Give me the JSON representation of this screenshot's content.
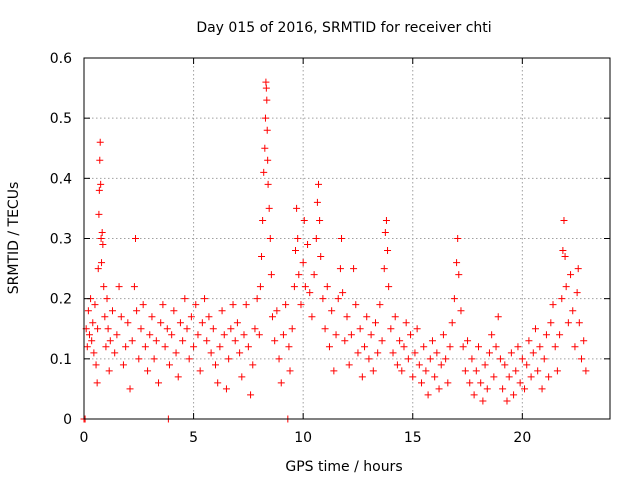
{
  "chart_data": {
    "type": "scatter",
    "title": "Day 015 of 2016, SRMTID for receiver chti",
    "xlabel": "GPS time / hours",
    "ylabel": "SRMTID / TECUs",
    "xlim": [
      0,
      24
    ],
    "ylim": [
      0,
      0.6
    ],
    "x_ticks": [
      0,
      5,
      10,
      15,
      20
    ],
    "y_ticks": [
      0,
      0.1,
      0.2,
      0.3,
      0.4,
      0.5,
      0.6
    ],
    "x_tick_labels": [
      "0",
      "5",
      "10",
      "15",
      "20"
    ],
    "y_tick_labels": [
      "0",
      "0.1",
      "0.2",
      "0.3",
      "0.4",
      "0.5",
      "0.6"
    ],
    "grid": true,
    "marker": "plus",
    "color": "#ff0000",
    "series": [
      {
        "name": "SRMTID",
        "points": [
          [
            0.0,
            0.0
          ],
          [
            0.05,
            0.0
          ],
          [
            0.1,
            0.15
          ],
          [
            0.15,
            0.12
          ],
          [
            0.2,
            0.18
          ],
          [
            0.25,
            0.14
          ],
          [
            0.3,
            0.2
          ],
          [
            0.35,
            0.13
          ],
          [
            0.4,
            0.16
          ],
          [
            0.45,
            0.11
          ],
          [
            0.5,
            0.19
          ],
          [
            0.55,
            0.09
          ],
          [
            0.6,
            0.06
          ],
          [
            0.62,
            0.15
          ],
          [
            0.65,
            0.25
          ],
          [
            0.68,
            0.34
          ],
          [
            0.7,
            0.38
          ],
          [
            0.72,
            0.43
          ],
          [
            0.74,
            0.46
          ],
          [
            0.76,
            0.39
          ],
          [
            0.78,
            0.3
          ],
          [
            0.8,
            0.26
          ],
          [
            0.83,
            0.31
          ],
          [
            0.86,
            0.29
          ],
          [
            0.9,
            0.22
          ],
          [
            0.95,
            0.17
          ],
          [
            1.0,
            0.12
          ],
          [
            1.05,
            0.2
          ],
          [
            1.1,
            0.15
          ],
          [
            1.15,
            0.08
          ],
          [
            1.2,
            0.13
          ],
          [
            1.3,
            0.18
          ],
          [
            1.4,
            0.11
          ],
          [
            1.5,
            0.14
          ],
          [
            1.6,
            0.22
          ],
          [
            1.7,
            0.17
          ],
          [
            1.8,
            0.09
          ],
          [
            1.9,
            0.12
          ],
          [
            2.0,
            0.16
          ],
          [
            2.1,
            0.05
          ],
          [
            2.2,
            0.13
          ],
          [
            2.3,
            0.22
          ],
          [
            2.35,
            0.3
          ],
          [
            2.4,
            0.18
          ],
          [
            2.5,
            0.1
          ],
          [
            2.6,
            0.15
          ],
          [
            2.7,
            0.19
          ],
          [
            2.8,
            0.12
          ],
          [
            2.9,
            0.08
          ],
          [
            3.0,
            0.14
          ],
          [
            3.1,
            0.17
          ],
          [
            3.2,
            0.1
          ],
          [
            3.3,
            0.13
          ],
          [
            3.4,
            0.06
          ],
          [
            3.5,
            0.16
          ],
          [
            3.6,
            0.19
          ],
          [
            3.7,
            0.12
          ],
          [
            3.8,
            0.15
          ],
          [
            3.85,
            0.0
          ],
          [
            3.9,
            0.09
          ],
          [
            4.0,
            0.14
          ],
          [
            4.1,
            0.18
          ],
          [
            4.2,
            0.11
          ],
          [
            4.3,
            0.07
          ],
          [
            4.4,
            0.16
          ],
          [
            4.5,
            0.13
          ],
          [
            4.6,
            0.2
          ],
          [
            4.7,
            0.15
          ],
          [
            4.8,
            0.1
          ],
          [
            4.9,
            0.17
          ],
          [
            5.0,
            0.12
          ],
          [
            5.1,
            0.19
          ],
          [
            5.2,
            0.14
          ],
          [
            5.3,
            0.08
          ],
          [
            5.4,
            0.16
          ],
          [
            5.5,
            0.2
          ],
          [
            5.6,
            0.13
          ],
          [
            5.7,
            0.17
          ],
          [
            5.8,
            0.11
          ],
          [
            5.9,
            0.15
          ],
          [
            6.0,
            0.09
          ],
          [
            6.1,
            0.06
          ],
          [
            6.2,
            0.12
          ],
          [
            6.3,
            0.18
          ],
          [
            6.4,
            0.14
          ],
          [
            6.5,
            0.05
          ],
          [
            6.6,
            0.1
          ],
          [
            6.7,
            0.15
          ],
          [
            6.8,
            0.19
          ],
          [
            6.9,
            0.13
          ],
          [
            7.0,
            0.16
          ],
          [
            7.1,
            0.11
          ],
          [
            7.2,
            0.07
          ],
          [
            7.3,
            0.14
          ],
          [
            7.4,
            0.19
          ],
          [
            7.5,
            0.12
          ],
          [
            7.6,
            0.04
          ],
          [
            7.7,
            0.09
          ],
          [
            7.8,
            0.15
          ],
          [
            7.9,
            0.2
          ],
          [
            8.0,
            0.14
          ],
          [
            8.05,
            0.22
          ],
          [
            8.1,
            0.27
          ],
          [
            8.15,
            0.33
          ],
          [
            8.2,
            0.41
          ],
          [
            8.25,
            0.45
          ],
          [
            8.28,
            0.5
          ],
          [
            8.3,
            0.56
          ],
          [
            8.32,
            0.55
          ],
          [
            8.34,
            0.53
          ],
          [
            8.36,
            0.48
          ],
          [
            8.38,
            0.43
          ],
          [
            8.4,
            0.39
          ],
          [
            8.45,
            0.35
          ],
          [
            8.5,
            0.3
          ],
          [
            8.55,
            0.24
          ],
          [
            8.6,
            0.17
          ],
          [
            8.7,
            0.13
          ],
          [
            8.8,
            0.18
          ],
          [
            8.9,
            0.1
          ],
          [
            9.0,
            0.06
          ],
          [
            9.1,
            0.14
          ],
          [
            9.2,
            0.19
          ],
          [
            9.3,
            0.0
          ],
          [
            9.35,
            0.12
          ],
          [
            9.4,
            0.08
          ],
          [
            9.5,
            0.15
          ],
          [
            9.6,
            0.22
          ],
          [
            9.65,
            0.28
          ],
          [
            9.7,
            0.35
          ],
          [
            9.75,
            0.3
          ],
          [
            9.8,
            0.24
          ],
          [
            9.9,
            0.19
          ],
          [
            10.0,
            0.26
          ],
          [
            10.05,
            0.33
          ],
          [
            10.1,
            0.22
          ],
          [
            10.2,
            0.29
          ],
          [
            10.3,
            0.21
          ],
          [
            10.4,
            0.17
          ],
          [
            10.5,
            0.24
          ],
          [
            10.6,
            0.3
          ],
          [
            10.65,
            0.36
          ],
          [
            10.7,
            0.39
          ],
          [
            10.75,
            0.33
          ],
          [
            10.8,
            0.27
          ],
          [
            10.9,
            0.2
          ],
          [
            11.0,
            0.15
          ],
          [
            11.1,
            0.22
          ],
          [
            11.2,
            0.12
          ],
          [
            11.3,
            0.18
          ],
          [
            11.4,
            0.08
          ],
          [
            11.5,
            0.14
          ],
          [
            11.6,
            0.2
          ],
          [
            11.7,
            0.25
          ],
          [
            11.75,
            0.3
          ],
          [
            11.8,
            0.21
          ],
          [
            11.9,
            0.13
          ],
          [
            12.0,
            0.17
          ],
          [
            12.1,
            0.09
          ],
          [
            12.2,
            0.14
          ],
          [
            12.3,
            0.25
          ],
          [
            12.4,
            0.19
          ],
          [
            12.5,
            0.11
          ],
          [
            12.6,
            0.15
          ],
          [
            12.7,
            0.07
          ],
          [
            12.8,
            0.12
          ],
          [
            12.9,
            0.17
          ],
          [
            13.0,
            0.1
          ],
          [
            13.1,
            0.14
          ],
          [
            13.2,
            0.08
          ],
          [
            13.3,
            0.16
          ],
          [
            13.4,
            0.11
          ],
          [
            13.5,
            0.19
          ],
          [
            13.6,
            0.13
          ],
          [
            13.7,
            0.25
          ],
          [
            13.75,
            0.31
          ],
          [
            13.8,
            0.33
          ],
          [
            13.85,
            0.28
          ],
          [
            13.9,
            0.22
          ],
          [
            14.0,
            0.15
          ],
          [
            14.1,
            0.11
          ],
          [
            14.2,
            0.17
          ],
          [
            14.3,
            0.09
          ],
          [
            14.4,
            0.13
          ],
          [
            14.5,
            0.08
          ],
          [
            14.6,
            0.12
          ],
          [
            14.7,
            0.16
          ],
          [
            14.8,
            0.1
          ],
          [
            14.9,
            0.14
          ],
          [
            15.0,
            0.07
          ],
          [
            15.1,
            0.11
          ],
          [
            15.2,
            0.15
          ],
          [
            15.3,
            0.09
          ],
          [
            15.4,
            0.06
          ],
          [
            15.5,
            0.12
          ],
          [
            15.6,
            0.08
          ],
          [
            15.7,
            0.04
          ],
          [
            15.8,
            0.1
          ],
          [
            15.9,
            0.13
          ],
          [
            16.0,
            0.07
          ],
          [
            16.1,
            0.11
          ],
          [
            16.2,
            0.05
          ],
          [
            16.3,
            0.09
          ],
          [
            16.4,
            0.14
          ],
          [
            16.5,
            0.1
          ],
          [
            16.6,
            0.06
          ],
          [
            16.7,
            0.12
          ],
          [
            16.8,
            0.16
          ],
          [
            16.9,
            0.2
          ],
          [
            17.0,
            0.26
          ],
          [
            17.05,
            0.3
          ],
          [
            17.1,
            0.24
          ],
          [
            17.2,
            0.18
          ],
          [
            17.3,
            0.12
          ],
          [
            17.4,
            0.08
          ],
          [
            17.5,
            0.13
          ],
          [
            17.6,
            0.06
          ],
          [
            17.7,
            0.1
          ],
          [
            17.8,
            0.04
          ],
          [
            17.9,
            0.08
          ],
          [
            18.0,
            0.12
          ],
          [
            18.1,
            0.06
          ],
          [
            18.2,
            0.03
          ],
          [
            18.3,
            0.09
          ],
          [
            18.4,
            0.05
          ],
          [
            18.5,
            0.11
          ],
          [
            18.6,
            0.14
          ],
          [
            18.7,
            0.07
          ],
          [
            18.8,
            0.12
          ],
          [
            18.9,
            0.17
          ],
          [
            19.0,
            0.1
          ],
          [
            19.1,
            0.05
          ],
          [
            19.2,
            0.09
          ],
          [
            19.3,
            0.03
          ],
          [
            19.4,
            0.07
          ],
          [
            19.5,
            0.11
          ],
          [
            19.6,
            0.04
          ],
          [
            19.7,
            0.08
          ],
          [
            19.8,
            0.12
          ],
          [
            19.9,
            0.06
          ],
          [
            20.0,
            0.1
          ],
          [
            20.1,
            0.05
          ],
          [
            20.2,
            0.09
          ],
          [
            20.3,
            0.13
          ],
          [
            20.4,
            0.07
          ],
          [
            20.5,
            0.11
          ],
          [
            20.6,
            0.15
          ],
          [
            20.7,
            0.08
          ],
          [
            20.8,
            0.12
          ],
          [
            20.9,
            0.05
          ],
          [
            21.0,
            0.1
          ],
          [
            21.1,
            0.14
          ],
          [
            21.2,
            0.07
          ],
          [
            21.3,
            0.16
          ],
          [
            21.4,
            0.19
          ],
          [
            21.5,
            0.12
          ],
          [
            21.6,
            0.08
          ],
          [
            21.7,
            0.14
          ],
          [
            21.8,
            0.2
          ],
          [
            21.85,
            0.28
          ],
          [
            21.9,
            0.33
          ],
          [
            21.95,
            0.27
          ],
          [
            22.0,
            0.22
          ],
          [
            22.1,
            0.16
          ],
          [
            22.2,
            0.24
          ],
          [
            22.3,
            0.18
          ],
          [
            22.4,
            0.12
          ],
          [
            22.5,
            0.21
          ],
          [
            22.55,
            0.25
          ],
          [
            22.6,
            0.16
          ],
          [
            22.7,
            0.1
          ],
          [
            22.8,
            0.13
          ],
          [
            22.9,
            0.08
          ]
        ]
      }
    ]
  }
}
